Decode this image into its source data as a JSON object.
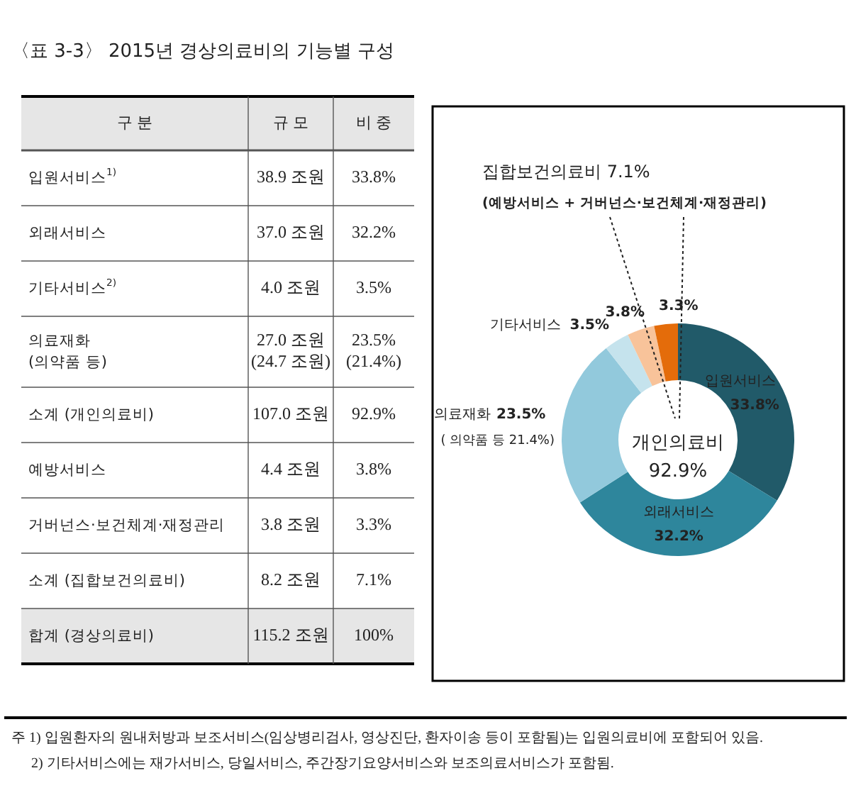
{
  "chart_data": [
    {
      "type": "other",
      "title": "〈표 3-3〉 2015년 경상의료비의 기능별 구성",
      "categories": [
        "구 분",
        "규 모",
        "비 중"
      ],
      "y_categories": [
        "입원서비스$^{1)}$",
        "외래서비스",
        "기타서비스$^{2)}$",
        "의료재화\n(의약품 등)",
        "소계 (개인의료비)",
        "예방서비스",
        "거버넌스·보건체계·재정관리",
        "소계 (집합보건의료비)",
        "합계 (경상의료비)"
      ],
      "cell_labels": [
        [
          "38.9 조원",
          "33.8%"
        ],
        [
          "37.0 조원",
          "32.2%"
        ],
        [
          "4.0 조원",
          "3.5%"
        ],
        [
          "27.0 조원\n(24.7 조원)",
          "23.5%\n(21.4%)"
        ],
        [
          "107.0 조원",
          "92.9%"
        ],
        [
          "4.4 조원",
          "3.8%"
        ],
        [
          "3.8 조원",
          "3.3%"
        ],
        [
          "8.2 조원",
          "7.1%"
        ],
        [
          "115.2 조원",
          "100%"
        ]
      ],
      "annotations": [
        "주 1) 입원환자의 원내처방과 보조서비스(임상병리검사, 영상진단, 환자이송 등이 포함됨)는 입원의료비에 포함되어 있음.",
        "2) 기타서비스에는 재가서비스, 당일서비스, 주간장기요양서비스와 보조의료서비스가 포함됨."
      ]
    },
    {
      "type": "donut",
      "categories": [
        "입원서비스",
        "외래서비스",
        "의료재화",
        "기타서비스",
        null,
        null
      ],
      "values": [
        33.8,
        32.2,
        23.5,
        3.5,
        3.8,
        3.3
      ],
      "value_labels": [
        "33.8%",
        "32.2%",
        "23.5%",
        "3.5%",
        "3.8%",
        "3.3%"
      ],
      "colors": [
        "#215a69",
        "#2e869c",
        "#92c9dc",
        "#c5e3ed",
        "#f8c39a",
        "#e46c0a"
      ],
      "annotations": [
        "집합보건의료비 7.1%",
        "(예방서비스 + 거버넌스·보건체계·재정관리)",
        "개인의료비\n92.9%",
        "( 의약품 등 21.4%)"
      ]
    }
  ]
}
